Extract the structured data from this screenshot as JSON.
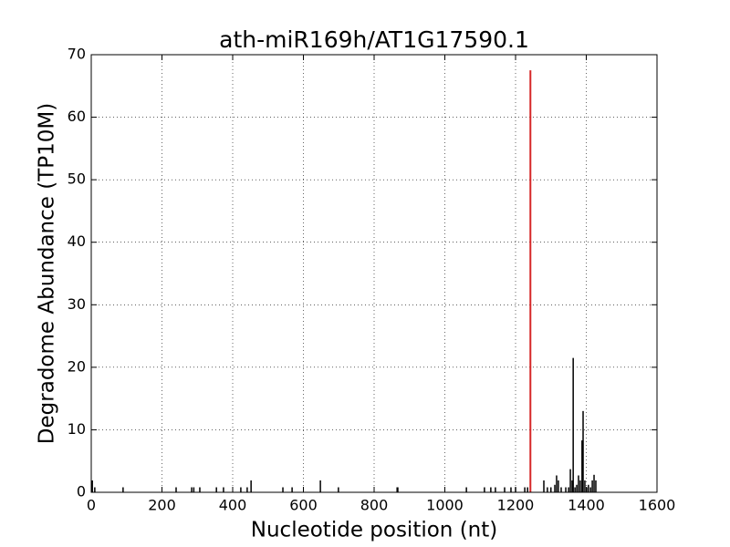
{
  "chart_data": {
    "type": "stem",
    "title": "ath-miR169h/AT1G17590.1",
    "x_label": "Nucleotide position (nt)",
    "y_label": "Degradome Abundance (TP10M)",
    "xlim": [
      0,
      1600
    ],
    "xticks": [
      0,
      200,
      400,
      600,
      800,
      1000,
      1200,
      1400,
      1600
    ],
    "ylim": [
      0,
      70
    ],
    "yticks": [
      0,
      10,
      20,
      30,
      40,
      50,
      60,
      70
    ],
    "grid": true,
    "series": [
      {
        "color": "#000000",
        "x": [
          3,
          10,
          90,
          240,
          284,
          290,
          307,
          354,
          374,
          423,
          441,
          452,
          542,
          568,
          648,
          699,
          865,
          867,
          1061,
          1112,
          1130,
          1143,
          1169,
          1187,
          1200,
          1226,
          1234,
          1280,
          1290,
          1300,
          1311,
          1316,
          1321,
          1329,
          1342,
          1350,
          1355,
          1360,
          1363,
          1368,
          1373,
          1378,
          1383,
          1388,
          1391,
          1396,
          1401,
          1406,
          1412,
          1417,
          1422,
          1427
        ],
        "values": [
          1.9,
          0.8,
          0.8,
          0.8,
          0.8,
          0.8,
          0.8,
          0.8,
          0.8,
          0.8,
          0.8,
          1.9,
          0.8,
          0.8,
          1.9,
          0.8,
          0.8,
          0.8,
          0.8,
          0.8,
          0.8,
          0.8,
          0.8,
          0.8,
          0.8,
          0.8,
          0.8,
          1.9,
          0.8,
          0.8,
          1.2,
          2.7,
          1.9,
          0.8,
          0.8,
          0.8,
          3.7,
          1.9,
          21.5,
          0.8,
          1.2,
          2.7,
          1.9,
          8.3,
          13,
          1.9,
          0.8,
          1.2,
          0.8,
          1.9,
          2.8,
          1.9
        ]
      },
      {
        "color": "#d62728",
        "x": [
          1242
        ],
        "values": [
          67.5
        ]
      }
    ]
  }
}
